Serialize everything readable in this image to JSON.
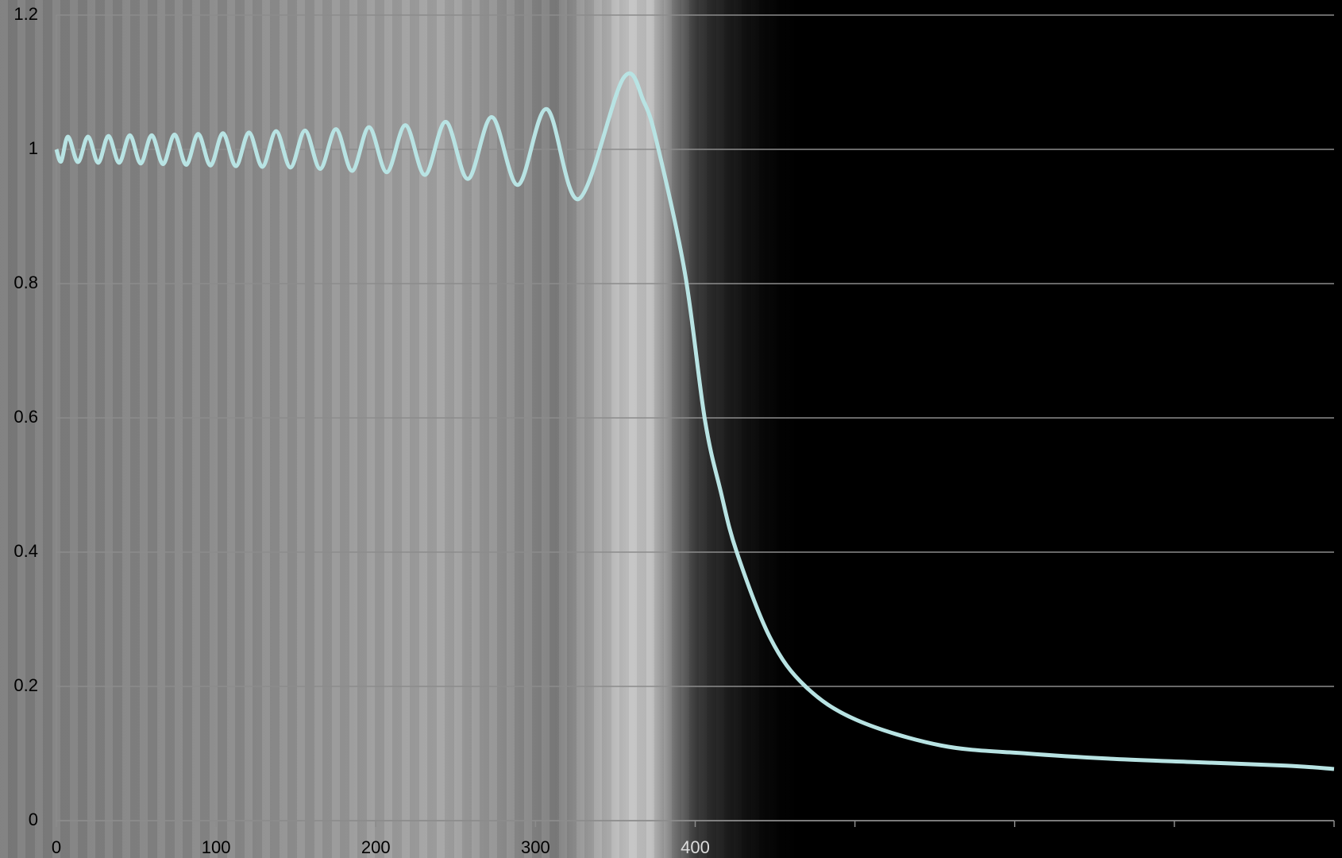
{
  "chart_data": {
    "type": "line",
    "x": [
      0,
      3,
      7.3,
      13.5,
      19.8,
      26.2,
      32.6,
      39.3,
      46,
      52.8,
      59.7,
      66.8,
      74,
      81.3,
      88.8,
      96.5,
      104.3,
      112.4,
      120.6,
      129,
      137.6,
      146.6,
      155.7,
      165.2,
      175.1,
      185.2,
      195.8,
      206.9,
      218.6,
      230.8,
      243.8,
      257.7,
      272.7,
      289,
      307,
      327,
      355,
      368,
      377,
      393.6,
      406,
      416,
      426,
      447,
      469,
      501,
      554,
      608,
      662,
      715,
      770,
      800
    ],
    "series": [
      {
        "color": "#b8e3e3",
        "values": [
          1.0,
          0.982,
          1.019,
          0.981,
          1.019,
          0.98,
          1.02,
          0.98,
          1.021,
          0.979,
          1.021,
          0.978,
          1.022,
          0.977,
          1.023,
          0.976,
          1.024,
          0.975,
          1.025,
          0.974,
          1.027,
          0.973,
          1.028,
          0.971,
          1.03,
          0.968,
          1.033,
          0.966,
          1.036,
          0.962,
          1.041,
          0.956,
          1.048,
          0.947,
          1.06,
          0.926,
          1.106,
          1.07,
          1.0,
          0.815,
          0.598,
          0.49,
          0.4,
          0.272,
          0.2,
          0.15,
          0.112,
          0.1,
          0.092,
          0.087,
          0.082,
          0.077
        ]
      }
    ],
    "xlim": [
      0,
      800
    ],
    "xticks": [
      0,
      100,
      200,
      300,
      400,
      {
        "value": 500,
        "label": null
      },
      {
        "value": 600,
        "label": null
      },
      {
        "value": 700,
        "label": null
      },
      {
        "value": 800,
        "label": null
      }
    ],
    "ylim": [
      0,
      1.2
    ],
    "yticks": [
      0,
      0.2,
      0.4,
      0.6,
      0.8,
      1,
      1.2
    ],
    "grid": true
  }
}
